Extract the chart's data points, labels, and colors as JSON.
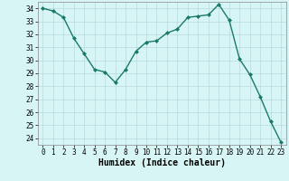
{
  "x": [
    0,
    1,
    2,
    3,
    4,
    5,
    6,
    7,
    8,
    9,
    10,
    11,
    12,
    13,
    14,
    15,
    16,
    17,
    18,
    19,
    20,
    21,
    22,
    23
  ],
  "y": [
    34,
    33.8,
    33.3,
    31.7,
    30.5,
    29.3,
    29.1,
    28.3,
    29.3,
    30.7,
    31.4,
    31.5,
    32.1,
    32.4,
    33.3,
    33.4,
    33.5,
    34.3,
    33.1,
    30.1,
    28.9,
    27.2,
    25.3,
    23.7
  ],
  "line_color": "#1a7a6a",
  "marker": "D",
  "markersize": 2.0,
  "linewidth": 1.0,
  "xlim": [
    -0.5,
    23.5
  ],
  "ylim": [
    23.5,
    34.5
  ],
  "yticks": [
    24,
    25,
    26,
    27,
    28,
    29,
    30,
    31,
    32,
    33,
    34
  ],
  "xticks": [
    0,
    1,
    2,
    3,
    4,
    5,
    6,
    7,
    8,
    9,
    10,
    11,
    12,
    13,
    14,
    15,
    16,
    17,
    18,
    19,
    20,
    21,
    22,
    23
  ],
  "xlabel": "Humidex (Indice chaleur)",
  "background_color": "#d8f5f5",
  "grid_color": "#b8dada",
  "tick_fontsize": 5.5,
  "label_fontsize": 7
}
